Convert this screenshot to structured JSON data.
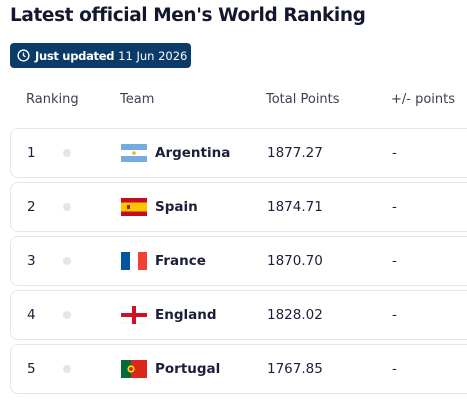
{
  "header": {
    "title": "Latest official Men's World Ranking",
    "badge_label": "Just updated",
    "badge_date": "11 Jun 2026"
  },
  "table": {
    "columns": [
      "Ranking",
      "Team",
      "Total Points",
      "+/- points"
    ],
    "rows": [
      [
        1,
        "Argentina",
        "1877.27",
        "-"
      ],
      [
        2,
        "Spain",
        "1874.71",
        "-"
      ],
      [
        3,
        "France",
        "1870.70",
        "-"
      ],
      [
        4,
        "England",
        "1828.02",
        "-"
      ],
      [
        5,
        "Portugal",
        "1767.85",
        "-"
      ]
    ]
  }
}
